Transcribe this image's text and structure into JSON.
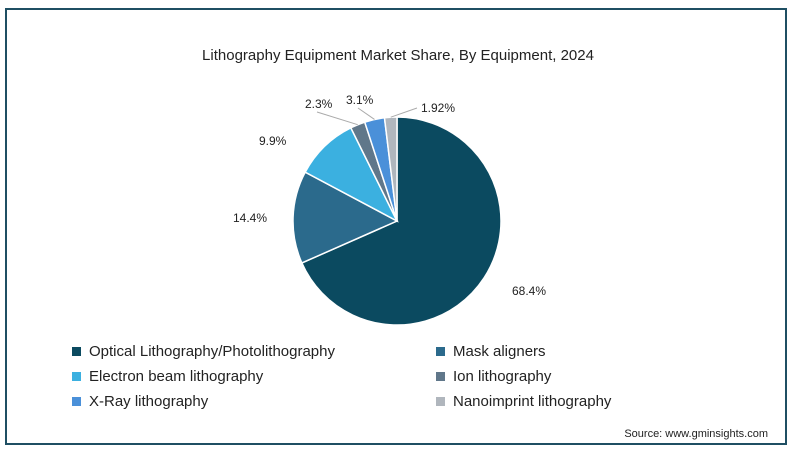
{
  "chart_data": {
    "type": "pie",
    "title": "Lithography Equipment Market Share, By Equipment, 2024",
    "series": [
      {
        "name": "Optical Lithography/Photolithography",
        "value": 68.4,
        "label": "68.4%",
        "color": "#0b4a60"
      },
      {
        "name": "Mask aligners",
        "value": 14.4,
        "label": "14.4%",
        "color": "#2b6a8c"
      },
      {
        "name": "Electron beam lithography",
        "value": 9.9,
        "label": "9.9%",
        "color": "#3bb0e0"
      },
      {
        "name": "Ion lithography",
        "value": 2.3,
        "label": "2.3%",
        "color": "#60778a"
      },
      {
        "name": "X-Ray lithography",
        "value": 3.1,
        "label": "3.1%",
        "color": "#4a90d9"
      },
      {
        "name": "Nanoimprint lithography",
        "value": 1.92,
        "label": "1.92%",
        "color": "#b0b6bd"
      }
    ],
    "legend_position": "bottom"
  },
  "source": "Source: www.gminsights.com"
}
